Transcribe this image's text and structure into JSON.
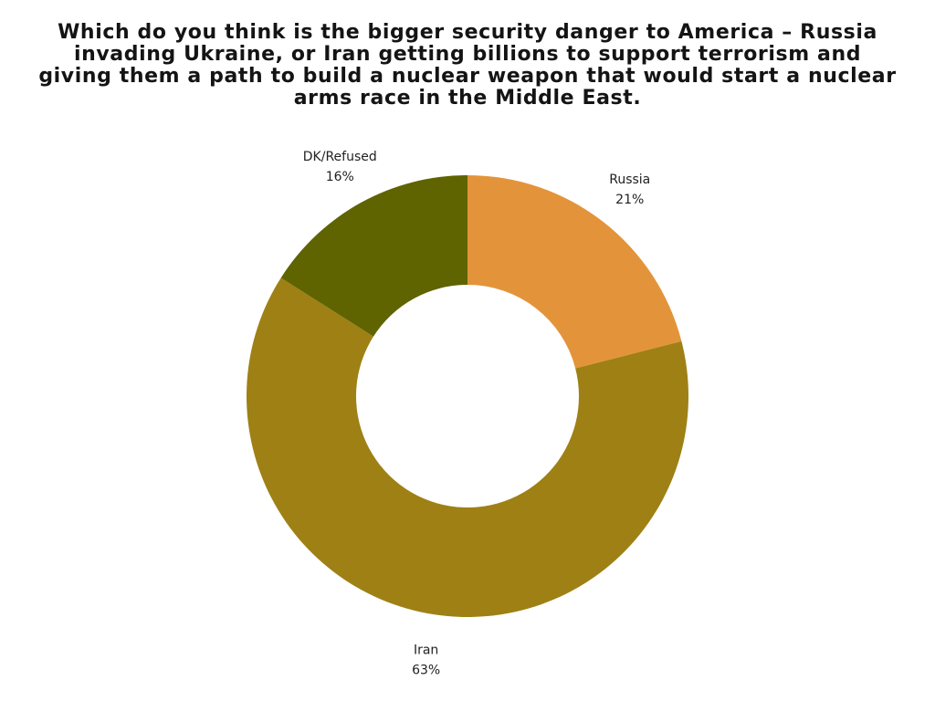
{
  "chart_data": {
    "type": "pie",
    "title": "Which do you think is the bigger security danger to America – Russia invading Ukraine, or Iran getting billions to support terrorism and giving them a path to build a nuclear weapon that would start a nuclear arms race in the Middle East.",
    "donut": true,
    "legend": "none",
    "slices": [
      {
        "label": "Russia",
        "value": 21,
        "value_label": "21%",
        "color": "#E3943A"
      },
      {
        "label": "Iran",
        "value": 63,
        "value_label": "63%",
        "color": "#9E8015"
      },
      {
        "label": "DK/Refused",
        "value": 16,
        "value_label": "16%",
        "color": "#5F6300"
      }
    ]
  }
}
